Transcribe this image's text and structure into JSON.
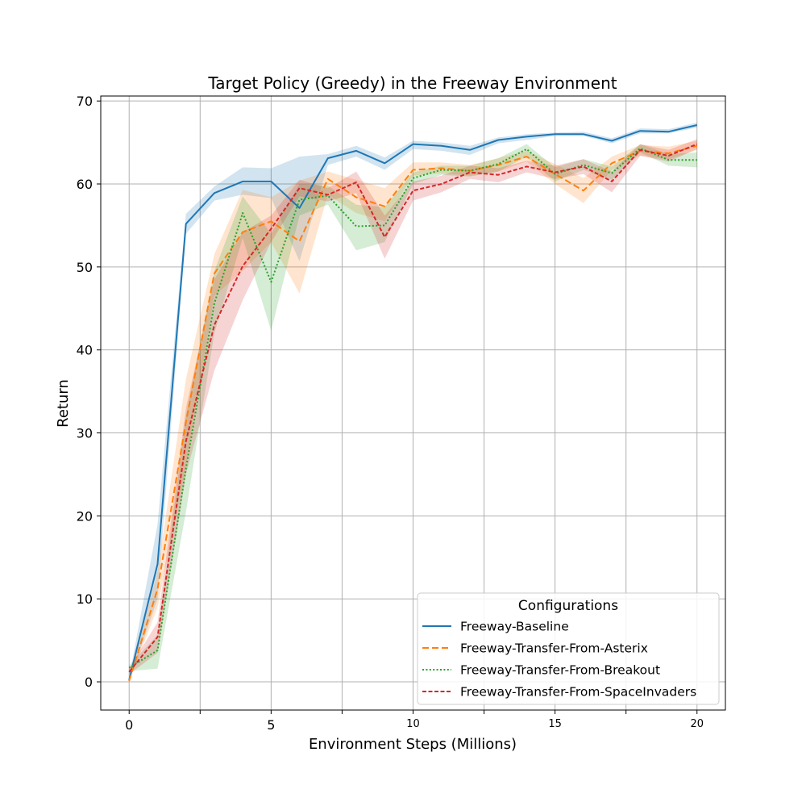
{
  "chart_data": {
    "type": "line",
    "title": "Target Policy (Greedy) in the Freeway Environment",
    "xlabel": "Environment Steps (Millions)",
    "ylabel": "Return",
    "xlim": [
      -1,
      21
    ],
    "ylim": [
      -3.4,
      70.6
    ],
    "xticks": [
      {
        "value": 0,
        "label": "0",
        "size": "large"
      },
      {
        "value": 2.5,
        "label": "",
        "size": "large"
      },
      {
        "value": 5,
        "label": "5",
        "size": "large"
      },
      {
        "value": 7.5,
        "label": "",
        "size": "large"
      },
      {
        "value": 10,
        "label": "10",
        "size": "small"
      },
      {
        "value": 12.5,
        "label": "",
        "size": "small"
      },
      {
        "value": 15,
        "label": "15",
        "size": "small"
      },
      {
        "value": 17.5,
        "label": "",
        "size": "small"
      },
      {
        "value": 20,
        "label": "20",
        "size": "small"
      }
    ],
    "yticks": [
      0,
      10,
      20,
      30,
      40,
      50,
      60,
      70
    ],
    "grid": true,
    "legend": {
      "title": "Configurations",
      "placement": "lower-right"
    },
    "x": [
      0,
      1,
      2,
      3,
      4,
      5,
      6,
      7,
      8,
      9,
      10,
      11,
      12,
      13,
      14,
      15,
      16,
      17,
      18,
      19,
      20
    ],
    "series": [
      {
        "name": "Freeway-Baseline",
        "color": "#1f77b4",
        "dash": "solid",
        "values": [
          0.2,
          14.2,
          55.2,
          58.9,
          60.3,
          60.3,
          57.1,
          63.1,
          64.0,
          62.5,
          64.8,
          64.6,
          64.1,
          65.3,
          65.7,
          66.0,
          66.0,
          65.2,
          66.4,
          66.3,
          67.1
        ],
        "lower": [
          0,
          10.0,
          54.0,
          58.0,
          58.7,
          58.3,
          50.7,
          62.3,
          63.3,
          61.7,
          64.2,
          64.0,
          63.5,
          64.9,
          65.3,
          65.8,
          65.8,
          64.9,
          66.1,
          66.1,
          66.8
        ],
        "upper": [
          0.5,
          19.0,
          56.4,
          59.7,
          62.0,
          61.9,
          63.3,
          63.6,
          64.6,
          63.2,
          65.2,
          65.0,
          64.6,
          65.6,
          66.0,
          66.2,
          66.3,
          65.5,
          66.7,
          66.6,
          67.4
        ]
      },
      {
        "name": "Freeway-Transfer-From-Asterix",
        "color": "#ff7f0e",
        "dash": "dashed",
        "values": [
          0.1,
          11.2,
          31.3,
          49.2,
          54.2,
          55.5,
          53.1,
          60.6,
          58.4,
          57.3,
          61.7,
          61.9,
          61.6,
          62.3,
          63.3,
          61.2,
          59.2,
          62.5,
          64.0,
          63.7,
          64.6
        ],
        "lower": [
          0,
          9.0,
          26.0,
          46.5,
          49.5,
          53.0,
          46.8,
          58.7,
          56.5,
          55.5,
          61.0,
          61.3,
          61.0,
          61.5,
          62.7,
          60.0,
          57.7,
          61.7,
          63.4,
          63.0,
          64.1
        ],
        "upper": [
          0.3,
          13.3,
          36.5,
          51.5,
          59.3,
          58.4,
          60.4,
          61.5,
          60.5,
          59.5,
          62.6,
          62.6,
          62.3,
          63.1,
          64.0,
          62.4,
          60.7,
          63.3,
          64.7,
          64.5,
          65.2
        ]
      },
      {
        "name": "Freeway-Transfer-From-Breakout",
        "color": "#2ca02c",
        "dash": "dotted",
        "values": [
          1.7,
          3.8,
          25.7,
          45.6,
          56.5,
          48.2,
          58.1,
          58.6,
          54.9,
          55.0,
          60.7,
          61.7,
          61.6,
          62.4,
          64.2,
          61.2,
          62.3,
          61.3,
          64.3,
          62.9,
          62.9
        ],
        "lower": [
          1.3,
          1.6,
          20.5,
          42.0,
          53.5,
          42.3,
          56.2,
          57.5,
          52.0,
          53.0,
          60.0,
          61.1,
          60.9,
          61.5,
          63.3,
          60.3,
          61.7,
          60.5,
          63.8,
          62.2,
          62.0
        ],
        "upper": [
          2.0,
          5.6,
          32.0,
          49.5,
          58.5,
          54.0,
          60.0,
          59.8,
          57.5,
          57.2,
          61.4,
          62.2,
          62.2,
          63.1,
          64.8,
          62.0,
          63.0,
          62.1,
          64.8,
          63.6,
          63.8
        ]
      },
      {
        "name": "Freeway-Transfer-From-SpaceInvaders",
        "color": "#d62728",
        "dash": "densely-dashed",
        "values": [
          1.2,
          5.4,
          29.0,
          43.0,
          50.1,
          54.6,
          59.5,
          58.7,
          60.2,
          53.6,
          59.2,
          60.0,
          61.4,
          61.1,
          62.1,
          61.4,
          62.1,
          60.3,
          64.1,
          63.4,
          64.8
        ],
        "lower": [
          0.9,
          3.5,
          25.0,
          37.5,
          46.0,
          53.0,
          58.5,
          57.9,
          58.9,
          51.0,
          58.0,
          59.0,
          60.6,
          60.2,
          61.4,
          60.6,
          61.2,
          59.0,
          63.4,
          62.7,
          64.2
        ],
        "upper": [
          1.6,
          7.2,
          33.0,
          48.5,
          54.2,
          56.2,
          60.5,
          59.5,
          61.5,
          56.2,
          60.3,
          61.0,
          62.2,
          61.9,
          62.8,
          62.2,
          63.0,
          61.5,
          64.8,
          64.1,
          65.4
        ]
      }
    ]
  }
}
